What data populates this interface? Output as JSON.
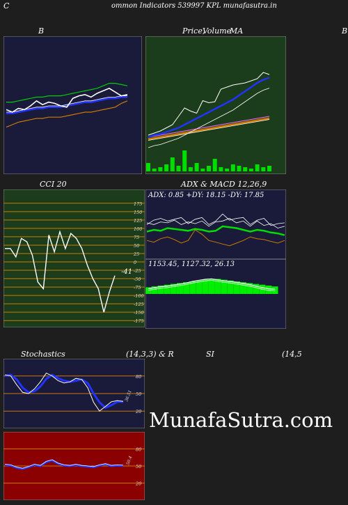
{
  "header": {
    "letter_left": "C",
    "title": "ommon  Indicators 539997 KPL  munafasutra.in",
    "letter_right": "B"
  },
  "panels": {
    "bollinger": {
      "label": "B"
    },
    "price": {
      "label_a": "Price,",
      "label_b": "Volume",
      "label_c": "MA"
    },
    "cci": {
      "label": "CCI 20",
      "current": "-41"
    },
    "adx": {
      "label": "ADX  & MACD 12,26,9",
      "stats": "ADX: 0.85 +DY: 18.15 -DY: 17.85"
    },
    "macd": {
      "stats": "1153.45,   1127.32,  26.13"
    },
    "stochastics": {
      "label_a": "Stochastics",
      "label_b": "(14,3,3) & R",
      "current": "36.51"
    },
    "rsi": {
      "label_a": "SI",
      "label_b": "(14,5",
      "current": "50.4"
    }
  },
  "watermark": "MunafaSutra.com",
  "colors": {
    "navy_panel": "#1a1a3a",
    "green_panel": "#1b3d1b",
    "red_panel": "#8b0000",
    "orange_line": "#cc7a00",
    "blue_line": "#2233ff",
    "bright_green": "#00dd00"
  },
  "chart_data": [
    {
      "type": "line",
      "name_on_chart": "B",
      "series": [
        {
          "values": [
            47,
            45,
            48,
            47,
            50,
            54,
            51,
            53,
            52,
            50,
            49,
            56,
            58,
            59,
            57,
            60,
            62,
            64,
            61,
            58,
            59
          ]
        },
        {
          "values": [
            44,
            44,
            45,
            46,
            47,
            48,
            48,
            49,
            49,
            49,
            50,
            51,
            52,
            53,
            53,
            54,
            55,
            56,
            56,
            57,
            57
          ]
        },
        {
          "values": [
            53,
            53,
            54,
            55,
            56,
            57,
            57,
            58,
            58,
            58,
            59,
            60,
            61,
            62,
            63,
            64,
            66,
            68,
            68,
            67,
            66
          ]
        },
        {
          "values": [
            33,
            35,
            37,
            38,
            39,
            40,
            40,
            41,
            41,
            41,
            42,
            43,
            44,
            45,
            45,
            46,
            47,
            48,
            49,
            52,
            54
          ]
        }
      ],
      "ylim": [
        0,
        100
      ]
    },
    {
      "type": "line",
      "name_on_chart": "Price, Volume MA",
      "series": [
        {
          "values": [
            12,
            14,
            16,
            19,
            22,
            30,
            38,
            35,
            33,
            45,
            43,
            44,
            56,
            58,
            60,
            61,
            62,
            64,
            66,
            72,
            70
          ]
        },
        {
          "values": [
            10,
            12,
            13,
            15,
            17,
            19,
            22,
            25,
            28,
            31,
            34,
            37,
            40,
            43,
            46,
            50,
            54,
            58,
            62,
            65,
            67
          ]
        },
        {
          "values": [
            8,
            9,
            10,
            11,
            12,
            13,
            14,
            15,
            16,
            17,
            18,
            19,
            20,
            21,
            22,
            23,
            24,
            25,
            26,
            27,
            28
          ]
        }
      ],
      "volume": [
        12,
        4,
        6,
        10,
        20,
        8,
        30,
        6,
        12,
        4,
        8,
        18,
        6,
        4,
        10,
        8,
        6,
        4,
        10,
        6,
        8
      ],
      "ylim": [
        0,
        100
      ]
    },
    {
      "type": "line",
      "name_on_chart": "CCI 20",
      "series": [
        {
          "values": [
            40,
            40,
            15,
            70,
            60,
            20,
            -60,
            -80,
            80,
            30,
            90,
            40,
            85,
            70,
            40,
            -10,
            -50,
            -80,
            -150,
            -90,
            -41
          ]
        }
      ],
      "yticks": [
        175,
        150,
        125,
        100,
        75,
        50,
        25,
        0,
        -25,
        -50,
        -75,
        -100,
        -125,
        -150,
        -175
      ],
      "ylim": [
        -185,
        185
      ]
    },
    {
      "type": "line",
      "name_on_chart": "ADX",
      "series": [
        {
          "values": [
            28,
            30,
            29,
            32,
            31,
            30,
            29,
            31,
            30,
            28,
            29,
            34,
            33,
            32,
            30,
            28,
            30,
            29,
            27,
            26,
            24
          ]
        },
        {
          "values": [
            18,
            16,
            20,
            22,
            19,
            15,
            18,
            30,
            25,
            18,
            16,
            14,
            12,
            15,
            18,
            22,
            20,
            19,
            17,
            15,
            18
          ]
        }
      ],
      "ylim": [
        0,
        60
      ]
    },
    {
      "type": "line",
      "name_on_chart": "MACD 12,26,9",
      "series": [
        {
          "values": [
            10,
            12,
            14,
            15,
            17,
            19,
            21,
            24,
            26,
            28,
            29,
            27,
            25,
            24,
            22,
            20,
            18,
            15,
            12,
            10,
            9
          ]
        }
      ],
      "histogram": [
        8,
        9,
        10,
        11,
        12,
        13,
        14,
        15,
        16,
        17,
        18,
        18,
        17,
        16,
        15,
        14,
        13,
        12,
        11,
        10,
        9
      ],
      "ylim": [
        0,
        40
      ]
    },
    {
      "type": "line",
      "name_on_chart": "Stochastics (14,3,3)",
      "series": [
        {
          "values": [
            82,
            80,
            65,
            52,
            50,
            58,
            70,
            85,
            80,
            72,
            68,
            70,
            76,
            74,
            60,
            35,
            20,
            28,
            36,
            38,
            36.51
          ]
        },
        {
          "values": [
            80,
            82,
            74,
            60,
            52,
            54,
            62,
            75,
            82,
            76,
            72,
            70,
            72,
            74,
            68,
            50,
            35,
            26,
            30,
            36,
            36
          ]
        }
      ],
      "yticks": [
        80,
        50,
        20
      ],
      "ylim": [
        0,
        100
      ]
    },
    {
      "type": "line",
      "name_on_chart": "RSI (14)",
      "series": [
        {
          "values": [
            52,
            51,
            47,
            45,
            48,
            52,
            50,
            57,
            60,
            54,
            51,
            50,
            52,
            50,
            49,
            48,
            51,
            53,
            50,
            51,
            50.4
          ]
        }
      ],
      "yticks": [
        80,
        50,
        20
      ],
      "ylim": [
        0,
        100
      ]
    }
  ]
}
